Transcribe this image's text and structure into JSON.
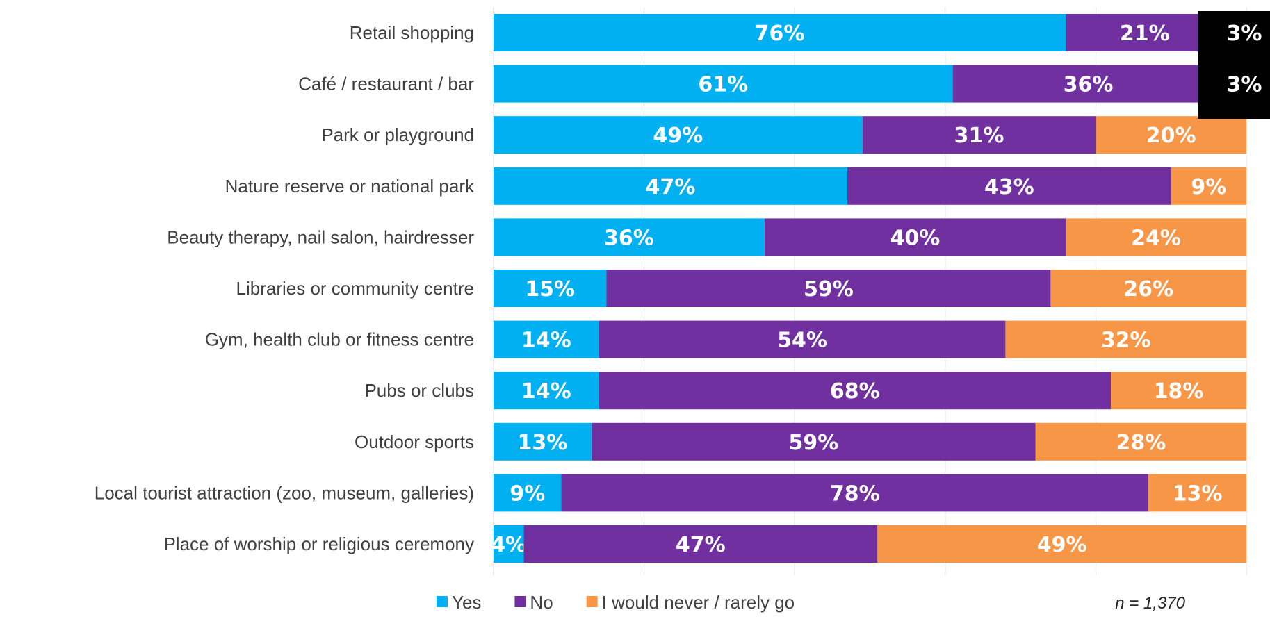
{
  "chart_data": {
    "type": "bar",
    "orientation": "horizontal",
    "stacked": true,
    "categories": [
      "Retail shopping",
      "Café / restaurant / bar",
      "Park or playground",
      "Nature reserve or national park",
      "Beauty therapy, nail salon, hairdresser",
      "Libraries or community centre",
      "Gym, health club or fitness centre",
      "Pubs or clubs",
      "Outdoor sports",
      "Local tourist attraction (zoo, museum, galleries)",
      "Place of worship or religious ceremony"
    ],
    "series": [
      {
        "name": "Yes",
        "color": "#00B0F0",
        "values": [
          76,
          61,
          49,
          47,
          36,
          15,
          14,
          14,
          13,
          9,
          4
        ]
      },
      {
        "name": "No",
        "color": "#7030A0",
        "values": [
          21,
          36,
          31,
          43,
          40,
          59,
          54,
          68,
          59,
          78,
          47
        ]
      },
      {
        "name": "I would never / rarely go",
        "color": "#F79646",
        "values": [
          3,
          3,
          20,
          9,
          24,
          26,
          32,
          18,
          28,
          13,
          49
        ]
      }
    ],
    "labels": [
      [
        "76%",
        "21%",
        "3%"
      ],
      [
        "61%",
        "36%",
        "3%"
      ],
      [
        "49%",
        "31%",
        "20%"
      ],
      [
        "47%",
        "43%",
        "9%"
      ],
      [
        "36%",
        "40%",
        "24%"
      ],
      [
        "15%",
        "59%",
        "26%"
      ],
      [
        "14%",
        "54%",
        "32%"
      ],
      [
        "14%",
        "68%",
        "18%"
      ],
      [
        "13%",
        "59%",
        "28%"
      ],
      [
        "9%",
        "78%",
        "13%"
      ],
      [
        "4%",
        "47%",
        "49%"
      ]
    ],
    "xlim": [
      0,
      100
    ],
    "grid": true,
    "legend_position": "bottom",
    "note": "n = 1,370"
  }
}
